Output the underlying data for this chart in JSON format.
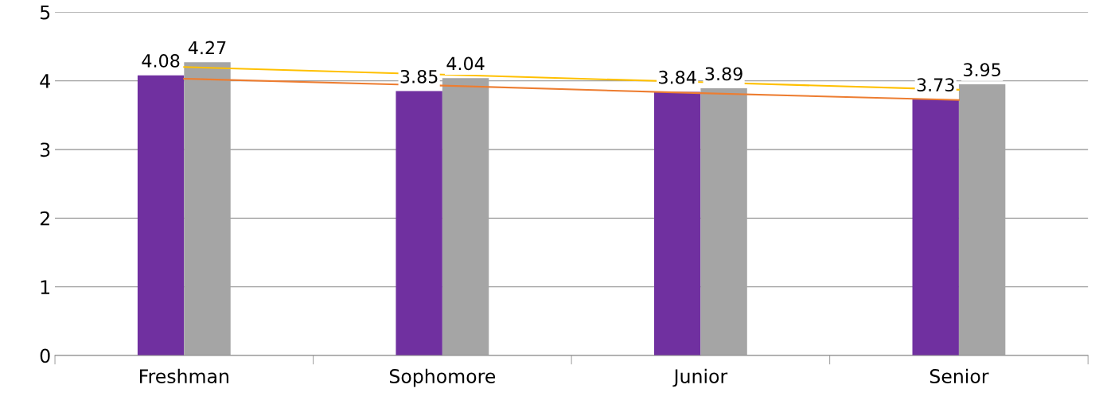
{
  "chart_data": {
    "type": "bar",
    "categories": [
      "Freshman",
      "Sophomore",
      "Junior",
      "Senior"
    ],
    "series": [
      {
        "color": "#7030a0",
        "values": [
          4.08,
          3.85,
          3.84,
          3.73
        ],
        "value_labels": [
          "4.08",
          "3.85",
          "3.84",
          "3.73"
        ]
      },
      {
        "color": "#a5a5a5",
        "values": [
          4.27,
          4.04,
          3.89,
          3.95
        ],
        "value_labels": [
          "4.27",
          "4.04",
          "3.89",
          "3.95"
        ]
      },
      {
        "type": "line",
        "color": "#ed7d31",
        "values": [
          4.03,
          3.93,
          3.82,
          3.72
        ]
      },
      {
        "type": "line",
        "color": "#ffc000",
        "values": [
          4.2,
          4.09,
          3.98,
          3.87
        ]
      }
    ],
    "ylim": [
      0,
      5
    ],
    "yticks": [
      0,
      1,
      2,
      3,
      4,
      5
    ],
    "grid": "y"
  }
}
